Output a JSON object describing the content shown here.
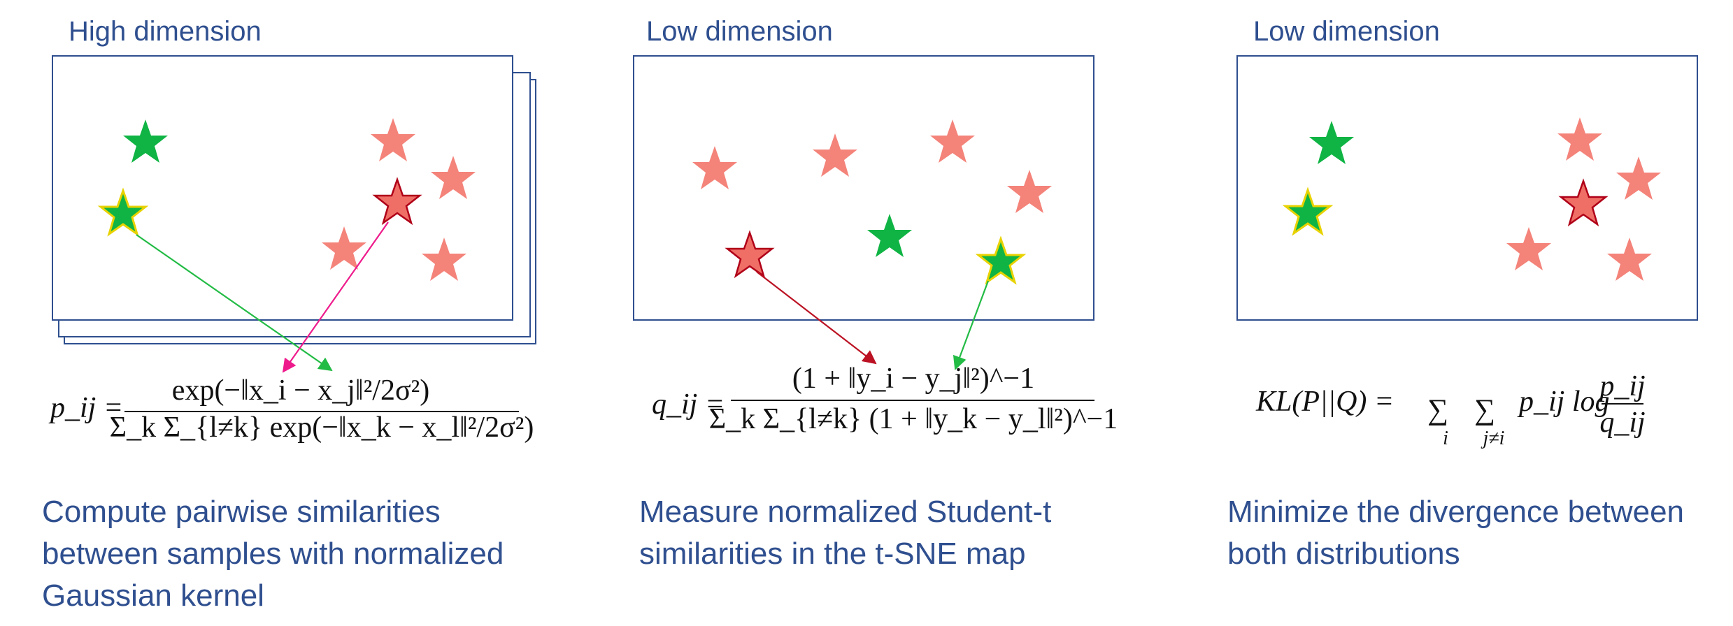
{
  "panels": [
    {
      "title": "High dimension",
      "formula": {
        "lhs": "p_ij =",
        "numerator": "exp(−‖x_i − x_j‖²/2σ²)",
        "denominator": "Σ_k Σ_{l≠k} exp(−‖x_k − x_l‖²/2σ²)"
      },
      "caption": "Compute pairwise similarities\nbetween samples with normalized\nGaussian kernel"
    },
    {
      "title": "Low dimension",
      "formula": {
        "lhs": "q_ij =",
        "numerator": "(1 + ‖y_i − y_j‖²)^−1",
        "denominator": "Σ_k Σ_{l≠k} (1 + ‖y_k − y_l‖²)^−1"
      },
      "caption": "Measure normalized Student-t\nsimilarities in the t-SNE map"
    },
    {
      "title": "Low dimension",
      "formula": {
        "lhs": "KL(P||Q) =",
        "sum_i": "i",
        "sum_j": "j≠i",
        "body": "p_ij log",
        "frac_num": "p_ij",
        "frac_den": "q_ij"
      },
      "caption": "Minimize the divergence between\nboth distributions"
    }
  ],
  "colors": {
    "frame": "#2f4f8f",
    "salmon_star": "#f4837a",
    "red_star": "#ef6f66",
    "green_star": "#0fb444",
    "green_arrow": "#22bb44",
    "magenta_arrow": "#ee1a8c",
    "red_arrow": "#bb1122"
  }
}
